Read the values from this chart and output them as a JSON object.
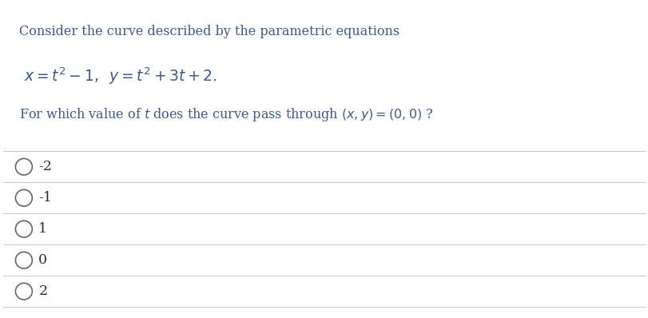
{
  "background_color": "#ffffff",
  "text_color_blue": "#3d5a8a",
  "text_color_dark": "#2d2d2d",
  "line_color": "#cccccc",
  "intro_text": "Consider the curve described by the parametric equations",
  "equation_text": "$x = t^2 - 1,\\;\\; y = t^2 + 3t + 2.$",
  "question_text": "For which value of $t$ does the curve pass through $(x, y) = (0, 0)$ ?",
  "choices": [
    "-2",
    "-1",
    "1",
    "0",
    "2"
  ],
  "font_size_intro": 11.5,
  "font_size_eq": 13.5,
  "font_size_question": 11.5,
  "font_size_choice": 12.5
}
